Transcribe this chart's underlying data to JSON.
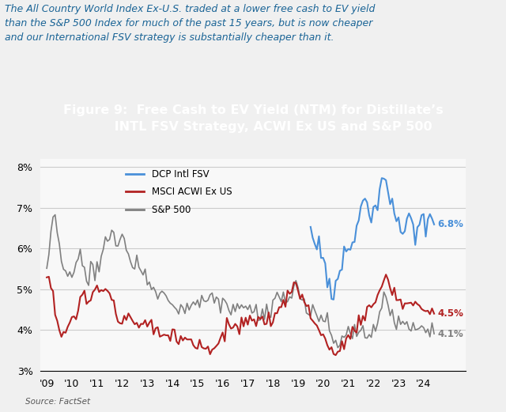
{
  "title_box_color": "#1a6496",
  "title_text": "Figure 9:  Free Cash to EV Yield (NTM) for Distillate’s\n         INTL FSV Strategy, ACWI Ex US and S&P 500",
  "subtitle_text": "The All Country World Index Ex-U.S. traded at a lower free cash to EV yield\nthan the S&P 500 Index for much of the past 15 years, but is now cheaper\nand our International FSV strategy is substantially cheaper than it.",
  "source_text": "Source: FactSet",
  "legend_labels": [
    "DCP Intl FSV",
    "MSCI ACWI Ex US",
    "S&P 500"
  ],
  "line_colors": [
    "#4a90d9",
    "#b22222",
    "#808080"
  ],
  "end_labels": [
    "6.8%",
    "4.5%",
    "4.1%"
  ],
  "ylim": [
    0.03,
    0.082
  ],
  "yticks": [
    0.03,
    0.04,
    0.05,
    0.06,
    0.07,
    0.08
  ],
  "ytick_labels": [
    "3%",
    "4%",
    "5%",
    "6%",
    "7%",
    "8%"
  ],
  "xtick_labels": [
    "'09",
    "'10",
    "'11",
    "'12",
    "'13",
    "'14",
    "'15",
    "'16",
    "'17",
    "'18",
    "'19",
    "'20",
    "'21",
    "'22",
    "'23",
    "'24"
  ],
  "background_color": "#f0f0f0",
  "plot_bg_color": "#f8f8f8"
}
